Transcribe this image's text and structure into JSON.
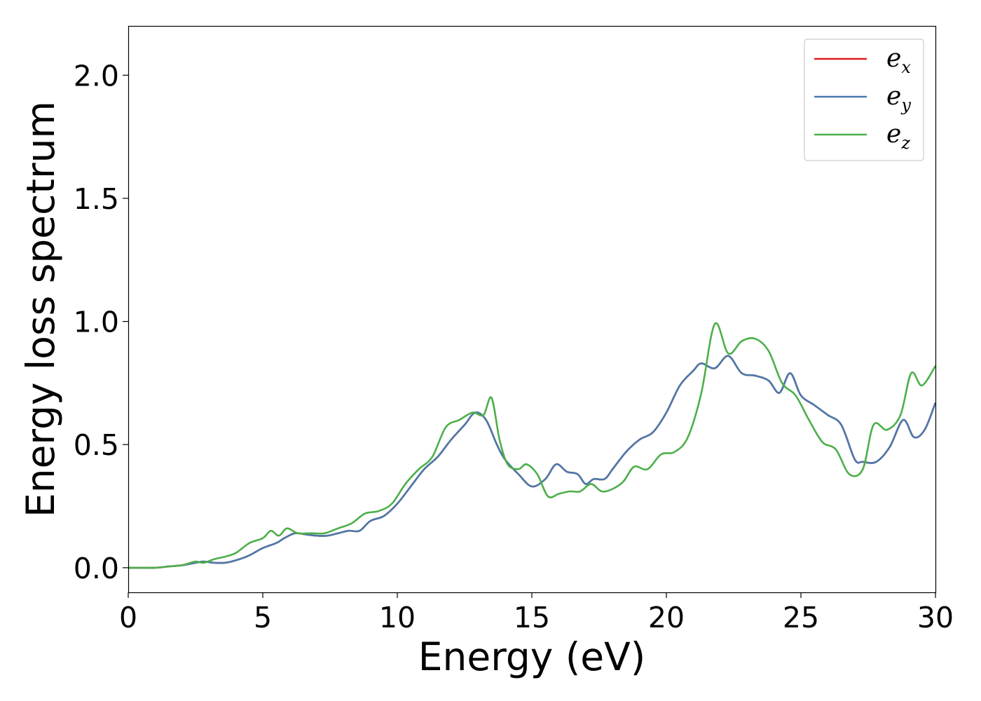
{
  "chart_data": {
    "type": "line",
    "title": "",
    "xlabel": "Energy (eV)",
    "ylabel": "Energy loss spectrum",
    "xlim": [
      0,
      30
    ],
    "ylim": [
      -0.1,
      2.2
    ],
    "xticks": [
      0,
      5,
      10,
      15,
      20,
      25,
      30
    ],
    "xtick_labels": [
      "0",
      "5",
      "10",
      "15",
      "20",
      "25",
      "30"
    ],
    "yticks": [
      0.0,
      0.5,
      1.0,
      1.5,
      2.0
    ],
    "ytick_labels": [
      "0.0",
      "0.5",
      "1.0",
      "1.5",
      "2.0"
    ],
    "grid": false,
    "legend_position": "top-right",
    "series": [
      {
        "name": "e_x",
        "legend_base": "e",
        "legend_sub": "x",
        "color": "#e41a1c",
        "x": [
          0,
          1,
          1.5,
          2,
          2.5,
          2.8,
          3.2,
          3.6,
          4,
          4.5,
          5,
          5.5,
          5.8,
          6.2,
          6.6,
          7,
          7.4,
          7.8,
          8.2,
          8.6,
          9,
          9.5,
          10,
          10.5,
          11,
          11.5,
          12,
          12.5,
          12.9,
          13.3,
          13.7,
          14,
          14.5,
          15,
          15.5,
          15.9,
          16.3,
          16.7,
          17,
          17.3,
          17.7,
          18,
          18.5,
          19,
          19.5,
          20,
          20.5,
          21,
          21.3,
          21.8,
          22.3,
          22.8,
          23.3,
          23.8,
          24.2,
          24.6,
          25,
          25.5,
          26,
          26.5,
          27,
          27.3,
          27.8,
          28.3,
          28.8,
          29.2,
          29.6,
          30
        ],
        "y": [
          0,
          0,
          0.005,
          0.01,
          0.02,
          0.025,
          0.02,
          0.02,
          0.03,
          0.05,
          0.08,
          0.1,
          0.12,
          0.14,
          0.135,
          0.13,
          0.13,
          0.14,
          0.15,
          0.15,
          0.19,
          0.21,
          0.26,
          0.33,
          0.4,
          0.45,
          0.52,
          0.58,
          0.63,
          0.6,
          0.5,
          0.44,
          0.38,
          0.33,
          0.36,
          0.42,
          0.39,
          0.38,
          0.34,
          0.36,
          0.36,
          0.4,
          0.47,
          0.52,
          0.55,
          0.63,
          0.74,
          0.8,
          0.83,
          0.81,
          0.86,
          0.79,
          0.78,
          0.76,
          0.71,
          0.79,
          0.7,
          0.66,
          0.62,
          0.58,
          0.44,
          0.43,
          0.43,
          0.49,
          0.6,
          0.53,
          0.56,
          0.67
        ]
      },
      {
        "name": "e_y",
        "legend_base": "e",
        "legend_sub": "y",
        "color": "#4a7aab",
        "x": [
          0,
          1,
          1.5,
          2,
          2.5,
          2.8,
          3.2,
          3.6,
          4,
          4.5,
          5,
          5.5,
          5.8,
          6.2,
          6.6,
          7,
          7.4,
          7.8,
          8.2,
          8.6,
          9,
          9.5,
          10,
          10.5,
          11,
          11.5,
          12,
          12.5,
          12.9,
          13.3,
          13.7,
          14,
          14.5,
          15,
          15.5,
          15.9,
          16.3,
          16.7,
          17,
          17.3,
          17.7,
          18,
          18.5,
          19,
          19.5,
          20,
          20.5,
          21,
          21.3,
          21.8,
          22.3,
          22.8,
          23.3,
          23.8,
          24.2,
          24.6,
          25,
          25.5,
          26,
          26.5,
          27,
          27.3,
          27.8,
          28.3,
          28.8,
          29.2,
          29.6,
          30
        ],
        "y": [
          0,
          0,
          0.005,
          0.01,
          0.02,
          0.025,
          0.02,
          0.02,
          0.03,
          0.05,
          0.08,
          0.1,
          0.12,
          0.14,
          0.135,
          0.13,
          0.13,
          0.14,
          0.15,
          0.15,
          0.19,
          0.21,
          0.26,
          0.33,
          0.4,
          0.45,
          0.52,
          0.58,
          0.63,
          0.6,
          0.5,
          0.44,
          0.38,
          0.33,
          0.36,
          0.42,
          0.39,
          0.38,
          0.34,
          0.36,
          0.36,
          0.4,
          0.47,
          0.52,
          0.55,
          0.63,
          0.74,
          0.8,
          0.83,
          0.81,
          0.86,
          0.79,
          0.78,
          0.76,
          0.71,
          0.79,
          0.7,
          0.66,
          0.62,
          0.58,
          0.44,
          0.43,
          0.43,
          0.49,
          0.6,
          0.53,
          0.56,
          0.67
        ]
      },
      {
        "name": "e_z",
        "legend_base": "e",
        "legend_sub": "z",
        "color": "#4daf4a",
        "x": [
          0,
          1,
          1.5,
          2,
          2.5,
          2.8,
          3.2,
          3.6,
          4,
          4.5,
          5,
          5.3,
          5.6,
          5.9,
          6.3,
          6.8,
          7.3,
          7.8,
          8.3,
          8.8,
          9.3,
          9.8,
          10.3,
          10.8,
          11.3,
          11.8,
          12.3,
          12.8,
          13.2,
          13.5,
          13.8,
          14.1,
          14.5,
          14.8,
          15.2,
          15.6,
          16,
          16.4,
          16.8,
          17.2,
          17.6,
          18,
          18.4,
          18.8,
          19.3,
          19.8,
          20.3,
          20.8,
          21.3,
          21.8,
          22.3,
          22.8,
          23.3,
          23.8,
          24.3,
          24.8,
          25.3,
          25.8,
          26.3,
          26.8,
          27.3,
          27.7,
          28.2,
          28.7,
          29.1,
          29.5,
          30
        ],
        "y": [
          0,
          0,
          0.005,
          0.01,
          0.025,
          0.02,
          0.035,
          0.045,
          0.06,
          0.1,
          0.12,
          0.15,
          0.13,
          0.16,
          0.14,
          0.14,
          0.14,
          0.16,
          0.18,
          0.22,
          0.23,
          0.26,
          0.34,
          0.4,
          0.45,
          0.57,
          0.6,
          0.63,
          0.62,
          0.69,
          0.52,
          0.42,
          0.4,
          0.42,
          0.38,
          0.29,
          0.3,
          0.31,
          0.31,
          0.34,
          0.31,
          0.32,
          0.35,
          0.41,
          0.4,
          0.46,
          0.47,
          0.53,
          0.71,
          0.99,
          0.87,
          0.92,
          0.93,
          0.88,
          0.75,
          0.7,
          0.6,
          0.51,
          0.48,
          0.38,
          0.4,
          0.58,
          0.56,
          0.62,
          0.79,
          0.74,
          0.82
        ]
      }
    ]
  }
}
